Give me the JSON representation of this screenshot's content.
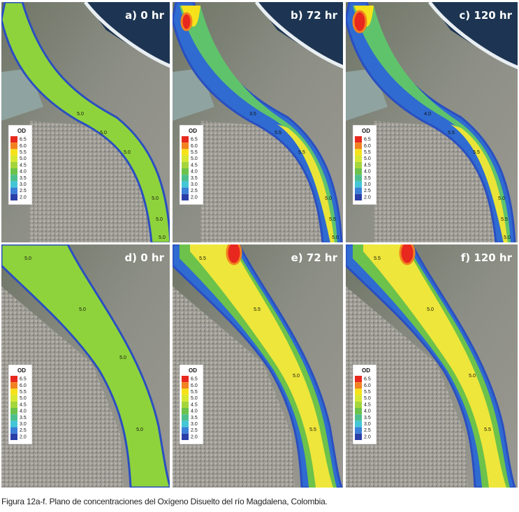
{
  "panels": [
    {
      "title": "a) 0 hr",
      "contour_labels": [
        "5.0",
        "5.0",
        "5.0",
        "5.0",
        "5.0",
        "5.0"
      ]
    },
    {
      "title": "b) 72 hr",
      "contour_labels": [
        "3.5",
        "5.5",
        "5.5",
        "5.0",
        "5.5",
        "5.0"
      ]
    },
    {
      "title": "c) 120 hr",
      "contour_labels": [
        "4.0",
        "5.5",
        "5.5",
        "5.0",
        "5.5",
        "5.0"
      ]
    },
    {
      "title": "d) 0 hr",
      "contour_labels": [
        "5.0",
        "5.0",
        "5.0",
        "5.0"
      ]
    },
    {
      "title": "e) 72 hr",
      "contour_labels": [
        "5.5",
        "5.5",
        "5.0",
        "5.5"
      ]
    },
    {
      "title": "f) 120 hr",
      "contour_labels": [
        "5.5",
        "5.0",
        "5.0",
        "5.5"
      ]
    }
  ],
  "legend": {
    "title": "OD",
    "levels": [
      "6.5",
      "6.0",
      "5.5",
      "5.0",
      "4.5",
      "4.0",
      "3.5",
      "3.0",
      "2.5",
      "2.0"
    ]
  },
  "caption": "Figura 12a-f. Plano de concentraciones del Oxígeno Disuelto del río Magdalena, Colombia."
}
